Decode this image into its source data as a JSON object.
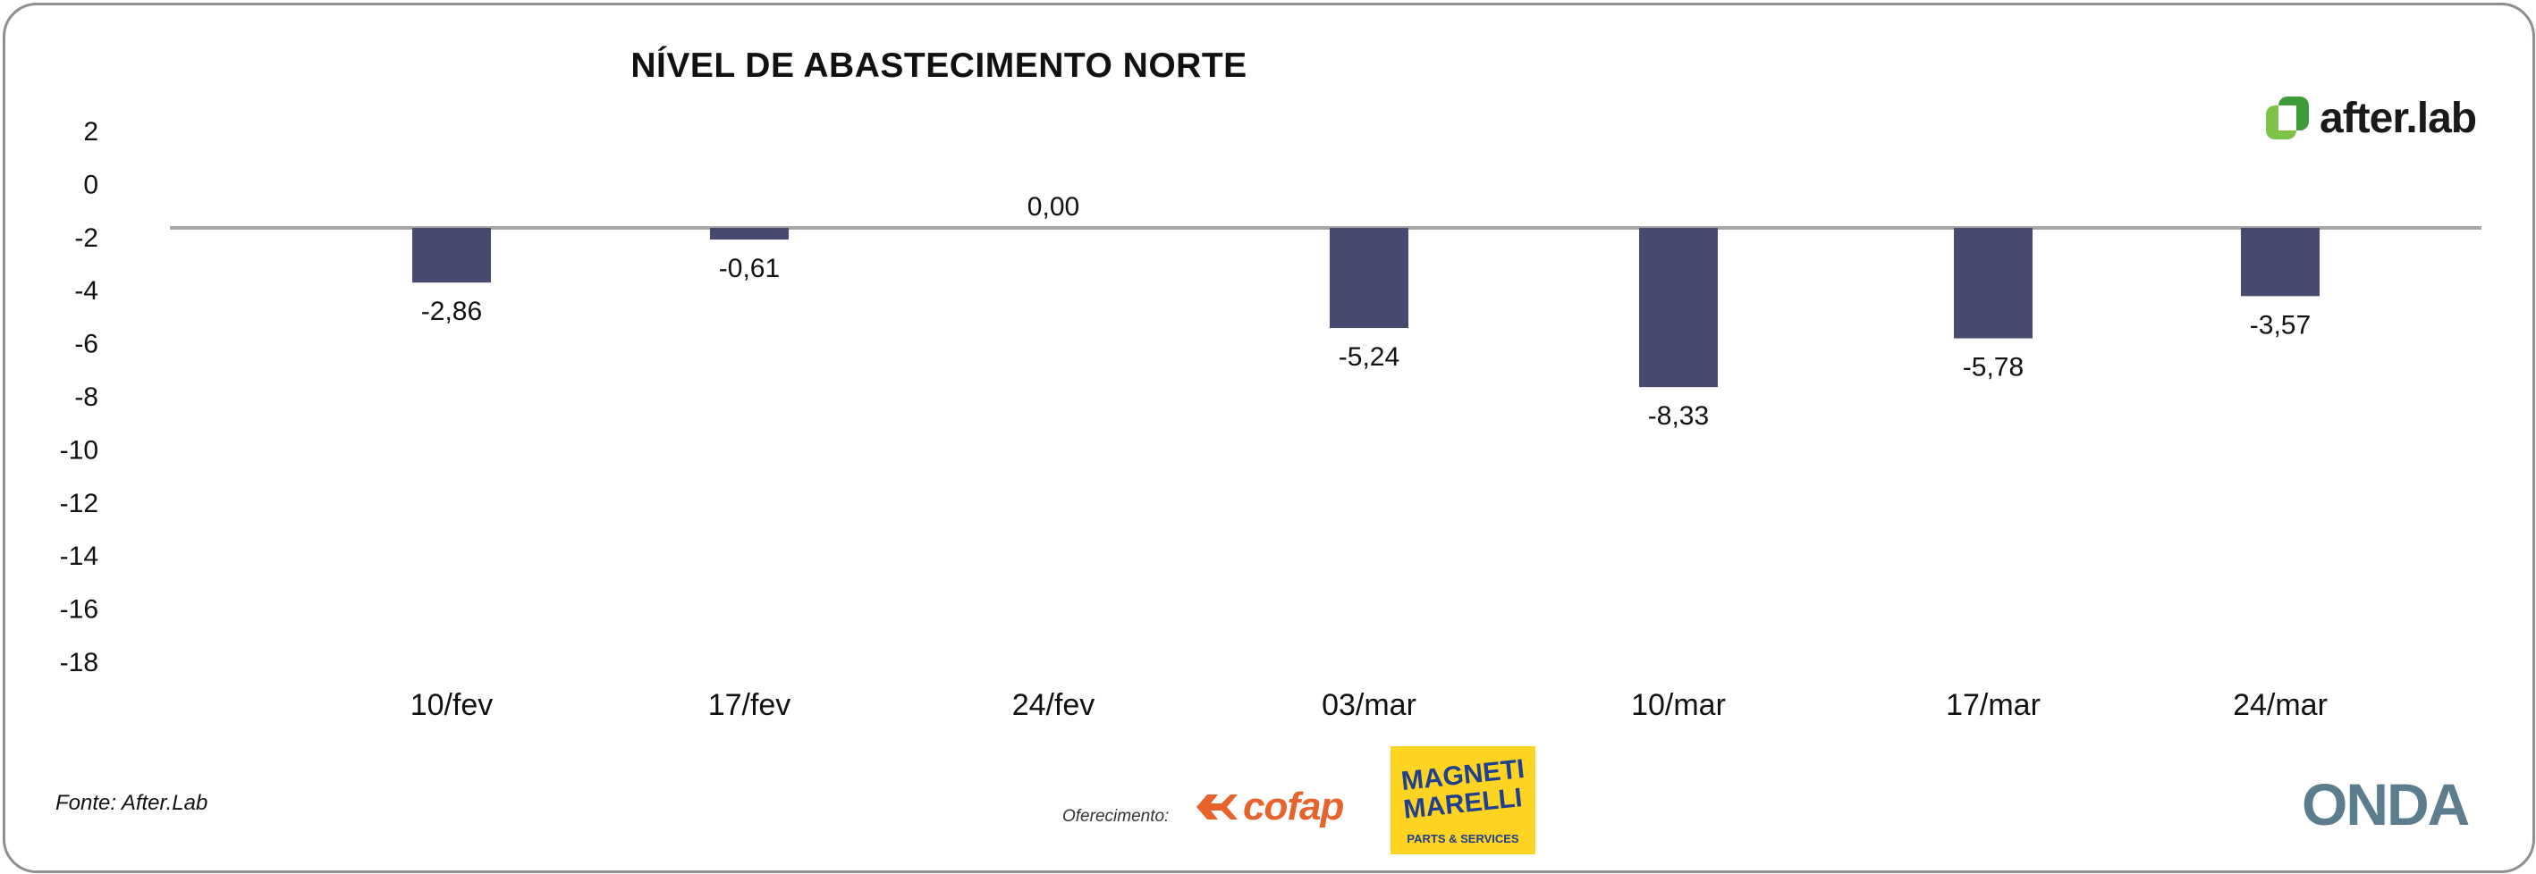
{
  "chart_data": {
    "type": "bar",
    "title": "NÍVEL DE ABASTECIMENTO NORTE",
    "categories": [
      "10/fev",
      "17/fev",
      "24/fev",
      "03/mar",
      "10/mar",
      "17/mar",
      "24/mar"
    ],
    "values": [
      -2.86,
      -0.61,
      0.0,
      -5.24,
      -8.33,
      -5.78,
      -3.57
    ],
    "value_labels": [
      "-2,86",
      "-0,61",
      "0,00",
      "-5,24",
      "-8,33",
      "-5,78",
      "-3,57"
    ],
    "y_ticks": [
      "2",
      "0",
      "-2",
      "-4",
      "-6",
      "-8",
      "-10",
      "-12",
      "-14",
      "-16",
      "-18"
    ],
    "ylim": [
      -18,
      2
    ],
    "xlabel": "",
    "ylabel": "",
    "colors": {
      "bar": "#464a6f",
      "zero_line": "#a6a6a6"
    }
  },
  "footer": {
    "source": "Fonte: After.Lab",
    "offer_label": "Oferecimento:"
  },
  "brands": {
    "afterlab": "after.lab",
    "cofap": "cofap",
    "magneti_line1": "MAGNETI",
    "magneti_line2": "MARELLI",
    "magneti_sub": "PARTS & SERVICES",
    "onda": "ONDA"
  }
}
